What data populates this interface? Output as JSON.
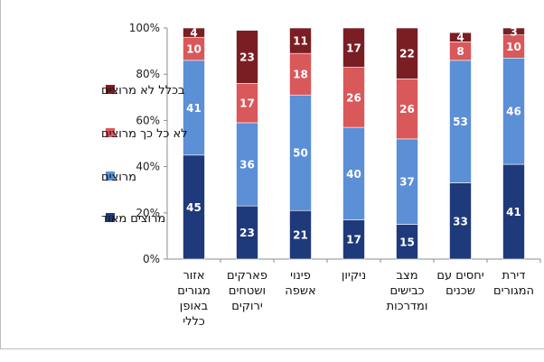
{
  "chart_data": {
    "type": "bar",
    "stacked": true,
    "orientation": "vertical",
    "categories": [
      [
        "אזור",
        "מגורים",
        "באופן",
        "כללי"
      ],
      [
        "פארקים",
        "ושטחים",
        "ירוקים"
      ],
      [
        "פינוי",
        "אשפה"
      ],
      [
        "ניקיון"
      ],
      [
        "מצב",
        "כבישים",
        "ומדרכות"
      ],
      [
        "יחסים עם",
        "שכנים"
      ],
      [
        "דירת",
        "המגורים"
      ]
    ],
    "series": [
      {
        "name": "מרוצים מאוד",
        "color": "#1f3a7a",
        "values": [
          45,
          23,
          21,
          17,
          15,
          33,
          41
        ]
      },
      {
        "name": "מרוצים",
        "color": "#5b8fd6",
        "values": [
          41,
          36,
          50,
          40,
          37,
          53,
          46
        ]
      },
      {
        "name": "לא כל כך מרוצים",
        "color": "#d9585a",
        "values": [
          10,
          17,
          18,
          26,
          26,
          8,
          10
        ]
      },
      {
        "name": "בכלל לא מרוצים",
        "color": "#7a1e24",
        "values": [
          4,
          23,
          11,
          17,
          22,
          4,
          3
        ]
      }
    ],
    "ylim": [
      0,
      100
    ],
    "yticks": [
      "0%",
      "20%",
      "40%",
      "60%",
      "80%",
      "100%"
    ],
    "grid": false,
    "legend_position": "left"
  }
}
